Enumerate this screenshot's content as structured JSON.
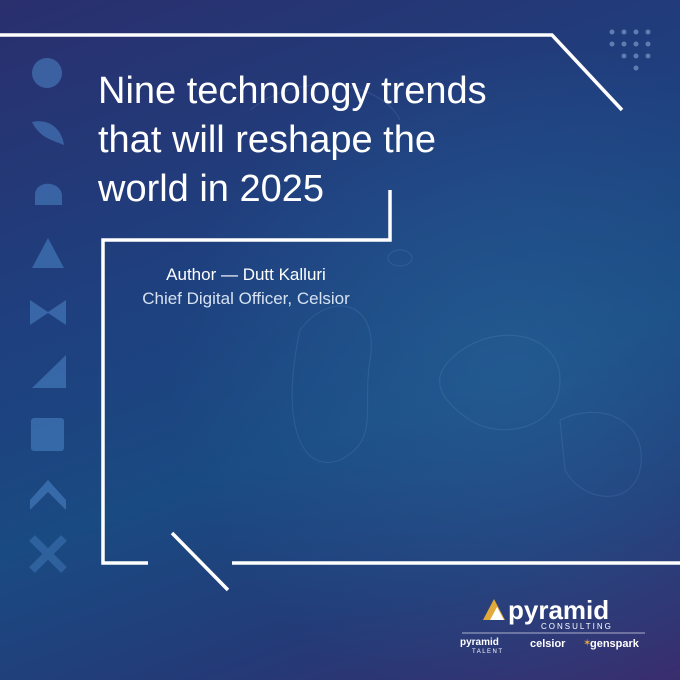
{
  "title_lines": [
    "Nine technology trends",
    "that will reshape the",
    "world in 2025"
  ],
  "author": "Author — Dutt Kalluri",
  "role": "Chief Digital Officer, Celsior",
  "logos": {
    "main": "pyramid",
    "main_sub": "CONSULTING",
    "talent": "pyramid",
    "talent_sub": "TALENT",
    "celsior": "celsior",
    "genspark": "genspark"
  }
}
